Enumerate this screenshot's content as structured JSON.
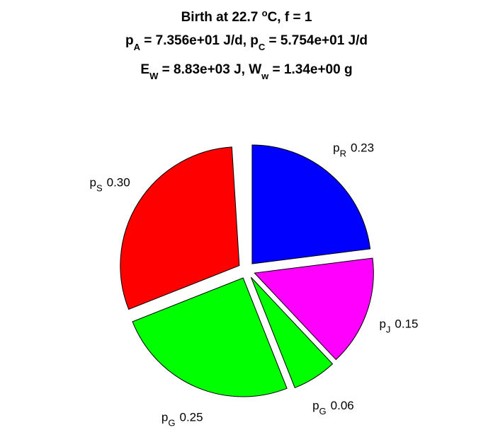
{
  "chart_data": {
    "type": "pie",
    "title": [
      [
        "Birth at 22.7 ",
        {
          "sup": "o"
        },
        "C, f = 1"
      ],
      [
        "p",
        {
          "sub": "A"
        },
        " = 7.356e+01 J/d, p",
        {
          "sub": "C"
        },
        " = 5.754e+01 J/d"
      ],
      [
        "E",
        {
          "sub": "W"
        },
        " = 8.83e+03 J, W",
        {
          "sub": "w"
        },
        " = 1.34e+00 g"
      ]
    ],
    "categories": [
      {
        "text": "p",
        "sub": "R"
      },
      {
        "text": "p",
        "sub": "J"
      },
      {
        "text": "p",
        "sub": "G"
      },
      {
        "text": "p",
        "sub": "G"
      },
      {
        "text": "p",
        "sub": "S"
      }
    ],
    "values": [
      0.23,
      0.15,
      0.06,
      0.25,
      0.3
    ],
    "value_labels": [
      "0.23",
      "0.15",
      "0.06",
      "0.25",
      "0.30"
    ],
    "colors": [
      "#0000ff",
      "#ff00ff",
      "#00ff00",
      "#00ff00",
      "#ff0000"
    ],
    "direction": "clockwise",
    "start_angle": 0,
    "exploded": true
  }
}
